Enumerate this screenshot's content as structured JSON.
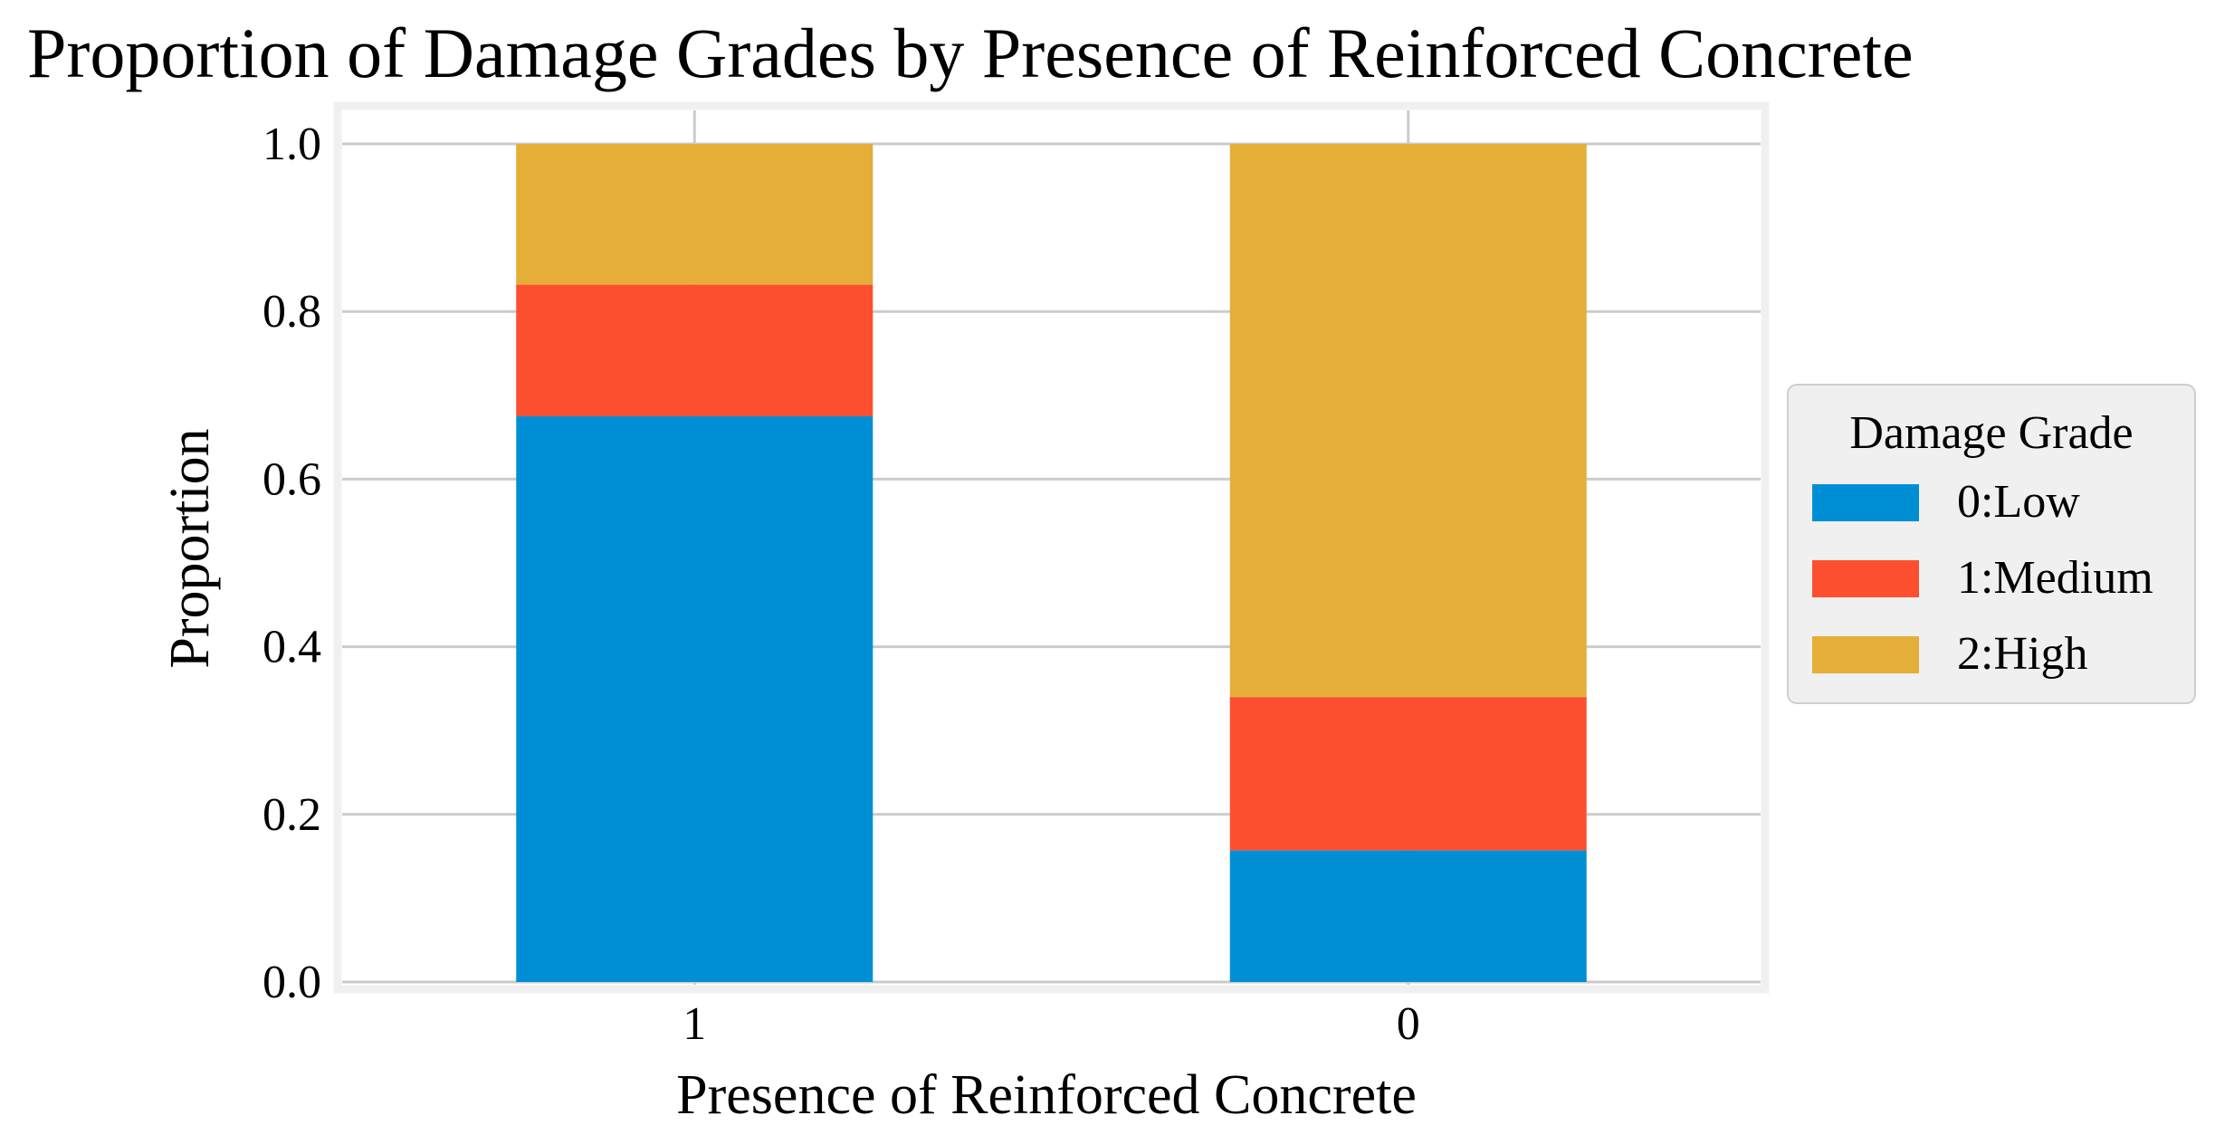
{
  "chart_data": {
    "type": "bar",
    "stacked": true,
    "title": "Proportion of Damage Grades by Presence of Reinforced Concrete",
    "xlabel": "Presence of Reinforced Concrete",
    "ylabel": "Proportion",
    "categories": [
      "1",
      "0"
    ],
    "ylim": [
      0,
      1.0
    ],
    "yticks": [
      "0.0",
      "0.2",
      "0.4",
      "0.6",
      "0.8",
      "1.0"
    ],
    "grid": true,
    "legend": {
      "title": "Damage Grade",
      "placement": "right"
    },
    "series": [
      {
        "name": "0:Low",
        "color": "#008fd5",
        "values": [
          0.675,
          0.157
        ]
      },
      {
        "name": "1:Medium",
        "color": "#fc4f30",
        "values": [
          0.157,
          0.183
        ]
      },
      {
        "name": "2:High",
        "color": "#e5ae38",
        "values": [
          0.168,
          0.66
        ]
      }
    ]
  }
}
